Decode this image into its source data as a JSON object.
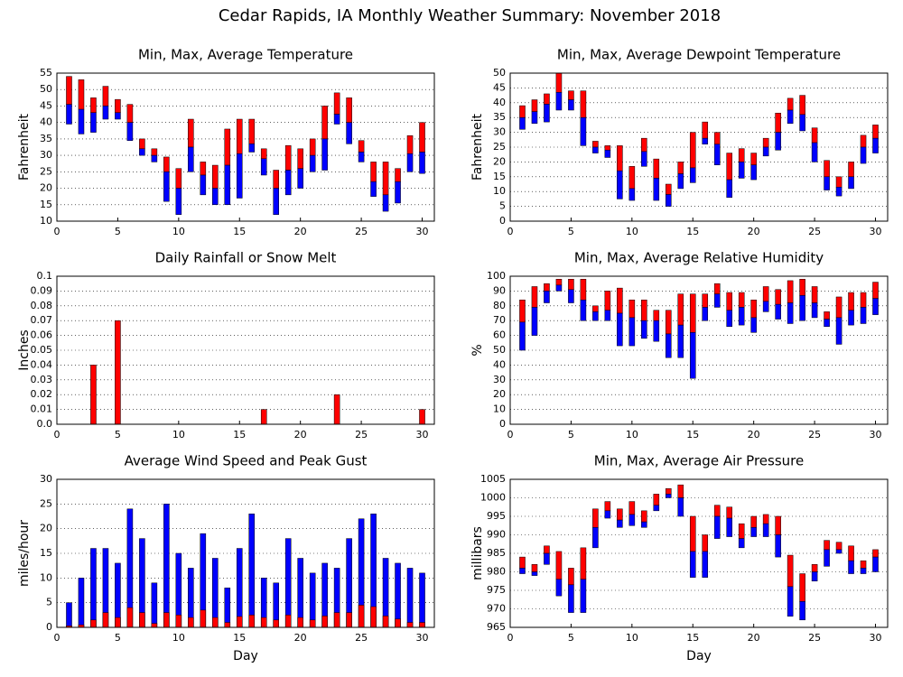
{
  "title": "Cedar Rapids, IA Monthly Weather Summary: November 2018",
  "chart_data": [
    {
      "type": "range",
      "title": "Min, Max, Average Temperature",
      "ylabel": "Fahrenheit",
      "x": [
        1,
        2,
        3,
        4,
        5,
        6,
        7,
        8,
        9,
        10,
        11,
        12,
        13,
        14,
        15,
        16,
        17,
        18,
        19,
        20,
        21,
        22,
        23,
        24,
        25,
        26,
        27,
        28,
        29,
        30
      ],
      "max": [
        54,
        53,
        47.5,
        51,
        47,
        45.5,
        35,
        32,
        29.5,
        26,
        41,
        28,
        27,
        38,
        41,
        41,
        32,
        25.5,
        33,
        32,
        35,
        45,
        49,
        47.5,
        34.5,
        28,
        28,
        26,
        36,
        40
      ],
      "avg": [
        45.5,
        44,
        43,
        45,
        43,
        40,
        32,
        30,
        25,
        20,
        32.5,
        24,
        20,
        27,
        30.5,
        33.5,
        29,
        20,
        25.5,
        26,
        30,
        35,
        42.5,
        40,
        31,
        22,
        18,
        22,
        30.5,
        31
      ],
      "min": [
        39.5,
        36.5,
        37,
        41,
        41,
        34.5,
        30,
        28,
        16,
        12,
        25,
        18,
        15,
        15,
        17,
        31,
        24,
        12,
        18,
        20,
        25,
        25.5,
        39.5,
        33.5,
        28,
        17.5,
        13,
        15.5,
        25,
        24.5
      ],
      "upper_color": "#ff0000",
      "lower_color": "#0000ff",
      "xlim": [
        0,
        31
      ],
      "xticks": [
        0,
        5,
        10,
        15,
        20,
        25,
        30
      ],
      "ylim": [
        10,
        55
      ],
      "yticks": [
        10,
        15,
        20,
        25,
        30,
        35,
        40,
        45,
        50,
        55
      ],
      "grid": true
    },
    {
      "type": "range",
      "title": "Min, Max, Average Dewpoint Temperature",
      "ylabel": "Fahrenheit",
      "x": [
        1,
        2,
        3,
        4,
        5,
        6,
        7,
        8,
        9,
        10,
        11,
        12,
        13,
        14,
        15,
        16,
        17,
        18,
        19,
        20,
        21,
        22,
        23,
        24,
        25,
        26,
        27,
        28,
        29,
        30
      ],
      "max": [
        39,
        41,
        43,
        50,
        44,
        44,
        27,
        25.5,
        25.5,
        18.5,
        28,
        21,
        12.5,
        20,
        30,
        33.5,
        30,
        23,
        24.5,
        23,
        28,
        36.5,
        41.5,
        42.5,
        31.5,
        20.5,
        15,
        20,
        29,
        32.5
      ],
      "avg": [
        35,
        37,
        39.5,
        43.5,
        41,
        35,
        25,
        24,
        17,
        11,
        23.5,
        14.5,
        9,
        16,
        18,
        28,
        26,
        14,
        20,
        19,
        25,
        30,
        37.5,
        36,
        26.5,
        15,
        11.5,
        15,
        25,
        28
      ],
      "min": [
        31,
        33,
        33.5,
        37.5,
        37.5,
        25.5,
        23,
        21.5,
        7.5,
        7,
        18.5,
        7,
        5,
        11,
        13,
        26,
        19,
        8,
        14.5,
        14,
        22,
        24,
        33,
        30.5,
        20,
        10.5,
        8.5,
        11,
        19.5,
        23
      ],
      "upper_color": "#ff0000",
      "lower_color": "#0000ff",
      "xlim": [
        0,
        31
      ],
      "xticks": [
        0,
        5,
        10,
        15,
        20,
        25,
        30
      ],
      "ylim": [
        0,
        50
      ],
      "yticks": [
        0,
        5,
        10,
        15,
        20,
        25,
        30,
        35,
        40,
        45,
        50
      ],
      "grid": true
    },
    {
      "type": "bar",
      "title": "Daily Rainfall or Snow Melt",
      "ylabel": "Inches",
      "x": [
        1,
        2,
        3,
        4,
        5,
        6,
        7,
        8,
        9,
        10,
        11,
        12,
        13,
        14,
        15,
        16,
        17,
        18,
        19,
        20,
        21,
        22,
        23,
        24,
        25,
        26,
        27,
        28,
        29,
        30
      ],
      "values": [
        0,
        0,
        0.04,
        0,
        0.07,
        0,
        0,
        0,
        0,
        0,
        0,
        0,
        0,
        0,
        0,
        0,
        0.01,
        0,
        0,
        0,
        0,
        0,
        0.02,
        0,
        0,
        0,
        0,
        0,
        0,
        0.01
      ],
      "color": "#ff0000",
      "xlim": [
        0,
        31
      ],
      "xticks": [
        0,
        5,
        10,
        15,
        20,
        25,
        30
      ],
      "ylim": [
        0,
        0.1
      ],
      "yticks": [
        {
          "value": 0,
          "label": "0.0"
        },
        0.01,
        0.02,
        0.03,
        0.04,
        0.05,
        0.06,
        0.07,
        0.08,
        0.09,
        0.1
      ],
      "grid": true
    },
    {
      "type": "range",
      "title": "Min, Max, Average Relative Humidity",
      "ylabel": "%",
      "x": [
        1,
        2,
        3,
        4,
        5,
        6,
        7,
        8,
        9,
        10,
        11,
        12,
        13,
        14,
        15,
        16,
        17,
        18,
        19,
        20,
        21,
        22,
        23,
        24,
        25,
        26,
        27,
        28,
        29,
        30
      ],
      "max": [
        84,
        93,
        95,
        98,
        98,
        98,
        80,
        90,
        92,
        84,
        84,
        77,
        77,
        88,
        88,
        88,
        95,
        89,
        89,
        84,
        93,
        91,
        97,
        98,
        93,
        76,
        86,
        89,
        89,
        96
      ],
      "avg": [
        69,
        79,
        90,
        94,
        91,
        84,
        76,
        77,
        75,
        72,
        70,
        70,
        61,
        67,
        62,
        79,
        88,
        77,
        79,
        72,
        83,
        81,
        82,
        87,
        82,
        71,
        72,
        77,
        79,
        85
      ],
      "min": [
        50,
        60,
        82,
        90,
        82,
        70,
        70,
        70,
        53,
        53,
        58,
        56,
        45,
        45,
        31,
        70,
        79,
        66,
        67,
        62,
        76,
        71,
        68,
        70,
        72,
        66,
        54,
        67,
        68,
        74
      ],
      "upper_color": "#ff0000",
      "lower_color": "#0000ff",
      "xlim": [
        0,
        31
      ],
      "xticks": [
        0,
        5,
        10,
        15,
        20,
        25,
        30
      ],
      "ylim": [
        0,
        100
      ],
      "yticks": [
        0,
        10,
        20,
        30,
        40,
        50,
        60,
        70,
        80,
        90,
        100
      ],
      "grid": true
    },
    {
      "type": "bar",
      "title": "Average Wind Speed and Peak Gust",
      "ylabel": "miles/hour",
      "xlabel": "Day",
      "x": [
        1,
        2,
        3,
        4,
        5,
        6,
        7,
        8,
        9,
        10,
        11,
        12,
        13,
        14,
        15,
        16,
        17,
        18,
        19,
        20,
        21,
        22,
        23,
        24,
        25,
        26,
        27,
        28,
        29,
        30
      ],
      "series": [
        {
          "color": "#0000ff",
          "values": [
            5,
            10,
            16,
            16,
            13,
            24,
            18,
            9,
            25,
            15,
            12,
            19,
            14,
            8,
            16,
            23,
            10,
            9,
            18,
            14,
            11,
            13,
            12,
            18,
            22,
            23,
            14,
            13,
            12,
            11
          ]
        },
        {
          "color": "#ff0000",
          "values": [
            0.3,
            0.5,
            1.5,
            3,
            2,
            4,
            3,
            0.8,
            3,
            2.5,
            2,
            3.5,
            2,
            1,
            2.2,
            2.5,
            2,
            1.5,
            2.5,
            2,
            1.5,
            2.3,
            3,
            3,
            4.5,
            4.2,
            2.3,
            1.7,
            1,
            1
          ]
        }
      ],
      "xlim": [
        0,
        31
      ],
      "xticks": [
        0,
        5,
        10,
        15,
        20,
        25,
        30
      ],
      "ylim": [
        0,
        30
      ],
      "yticks": [
        0,
        5,
        10,
        15,
        20,
        25,
        30
      ],
      "grid": true
    },
    {
      "type": "range",
      "title": "Min, Max, Average Air Pressure",
      "ylabel": "millibars",
      "xlabel": "Day",
      "x": [
        1,
        2,
        3,
        4,
        5,
        6,
        7,
        8,
        9,
        10,
        11,
        12,
        13,
        14,
        15,
        16,
        17,
        18,
        19,
        20,
        21,
        22,
        23,
        24,
        25,
        26,
        27,
        28,
        29,
        30
      ],
      "max": [
        984,
        982,
        987,
        985.5,
        981,
        986.5,
        997,
        999,
        997,
        999,
        996.5,
        1001,
        1002.5,
        1003.5,
        995,
        990,
        998,
        997.5,
        993,
        995,
        995.5,
        995,
        984.5,
        979.5,
        982,
        988.5,
        988,
        987,
        983,
        986
      ],
      "avg": [
        981,
        980,
        985,
        978,
        976.5,
        978,
        992,
        996.5,
        994,
        995.5,
        993.5,
        998,
        1001,
        1000,
        985.5,
        985.5,
        995,
        994.5,
        989,
        992,
        993,
        990,
        976,
        972,
        980,
        986,
        986,
        983,
        981,
        984
      ],
      "min": [
        979.5,
        979,
        982,
        973.5,
        969,
        969,
        986.5,
        994.5,
        992,
        992.5,
        992,
        996.5,
        1000,
        995,
        978.5,
        978.5,
        989,
        989.5,
        986.5,
        989.5,
        989.5,
        984,
        968,
        967,
        977.5,
        981.5,
        985,
        979.5,
        979.5,
        980
      ],
      "upper_color": "#ff0000",
      "lower_color": "#0000ff",
      "xlim": [
        0,
        31
      ],
      "xticks": [
        0,
        5,
        10,
        15,
        20,
        25,
        30
      ],
      "ylim": [
        965,
        1005
      ],
      "yticks": [
        965,
        970,
        975,
        980,
        985,
        990,
        995,
        1000,
        1005
      ],
      "grid": true
    }
  ]
}
